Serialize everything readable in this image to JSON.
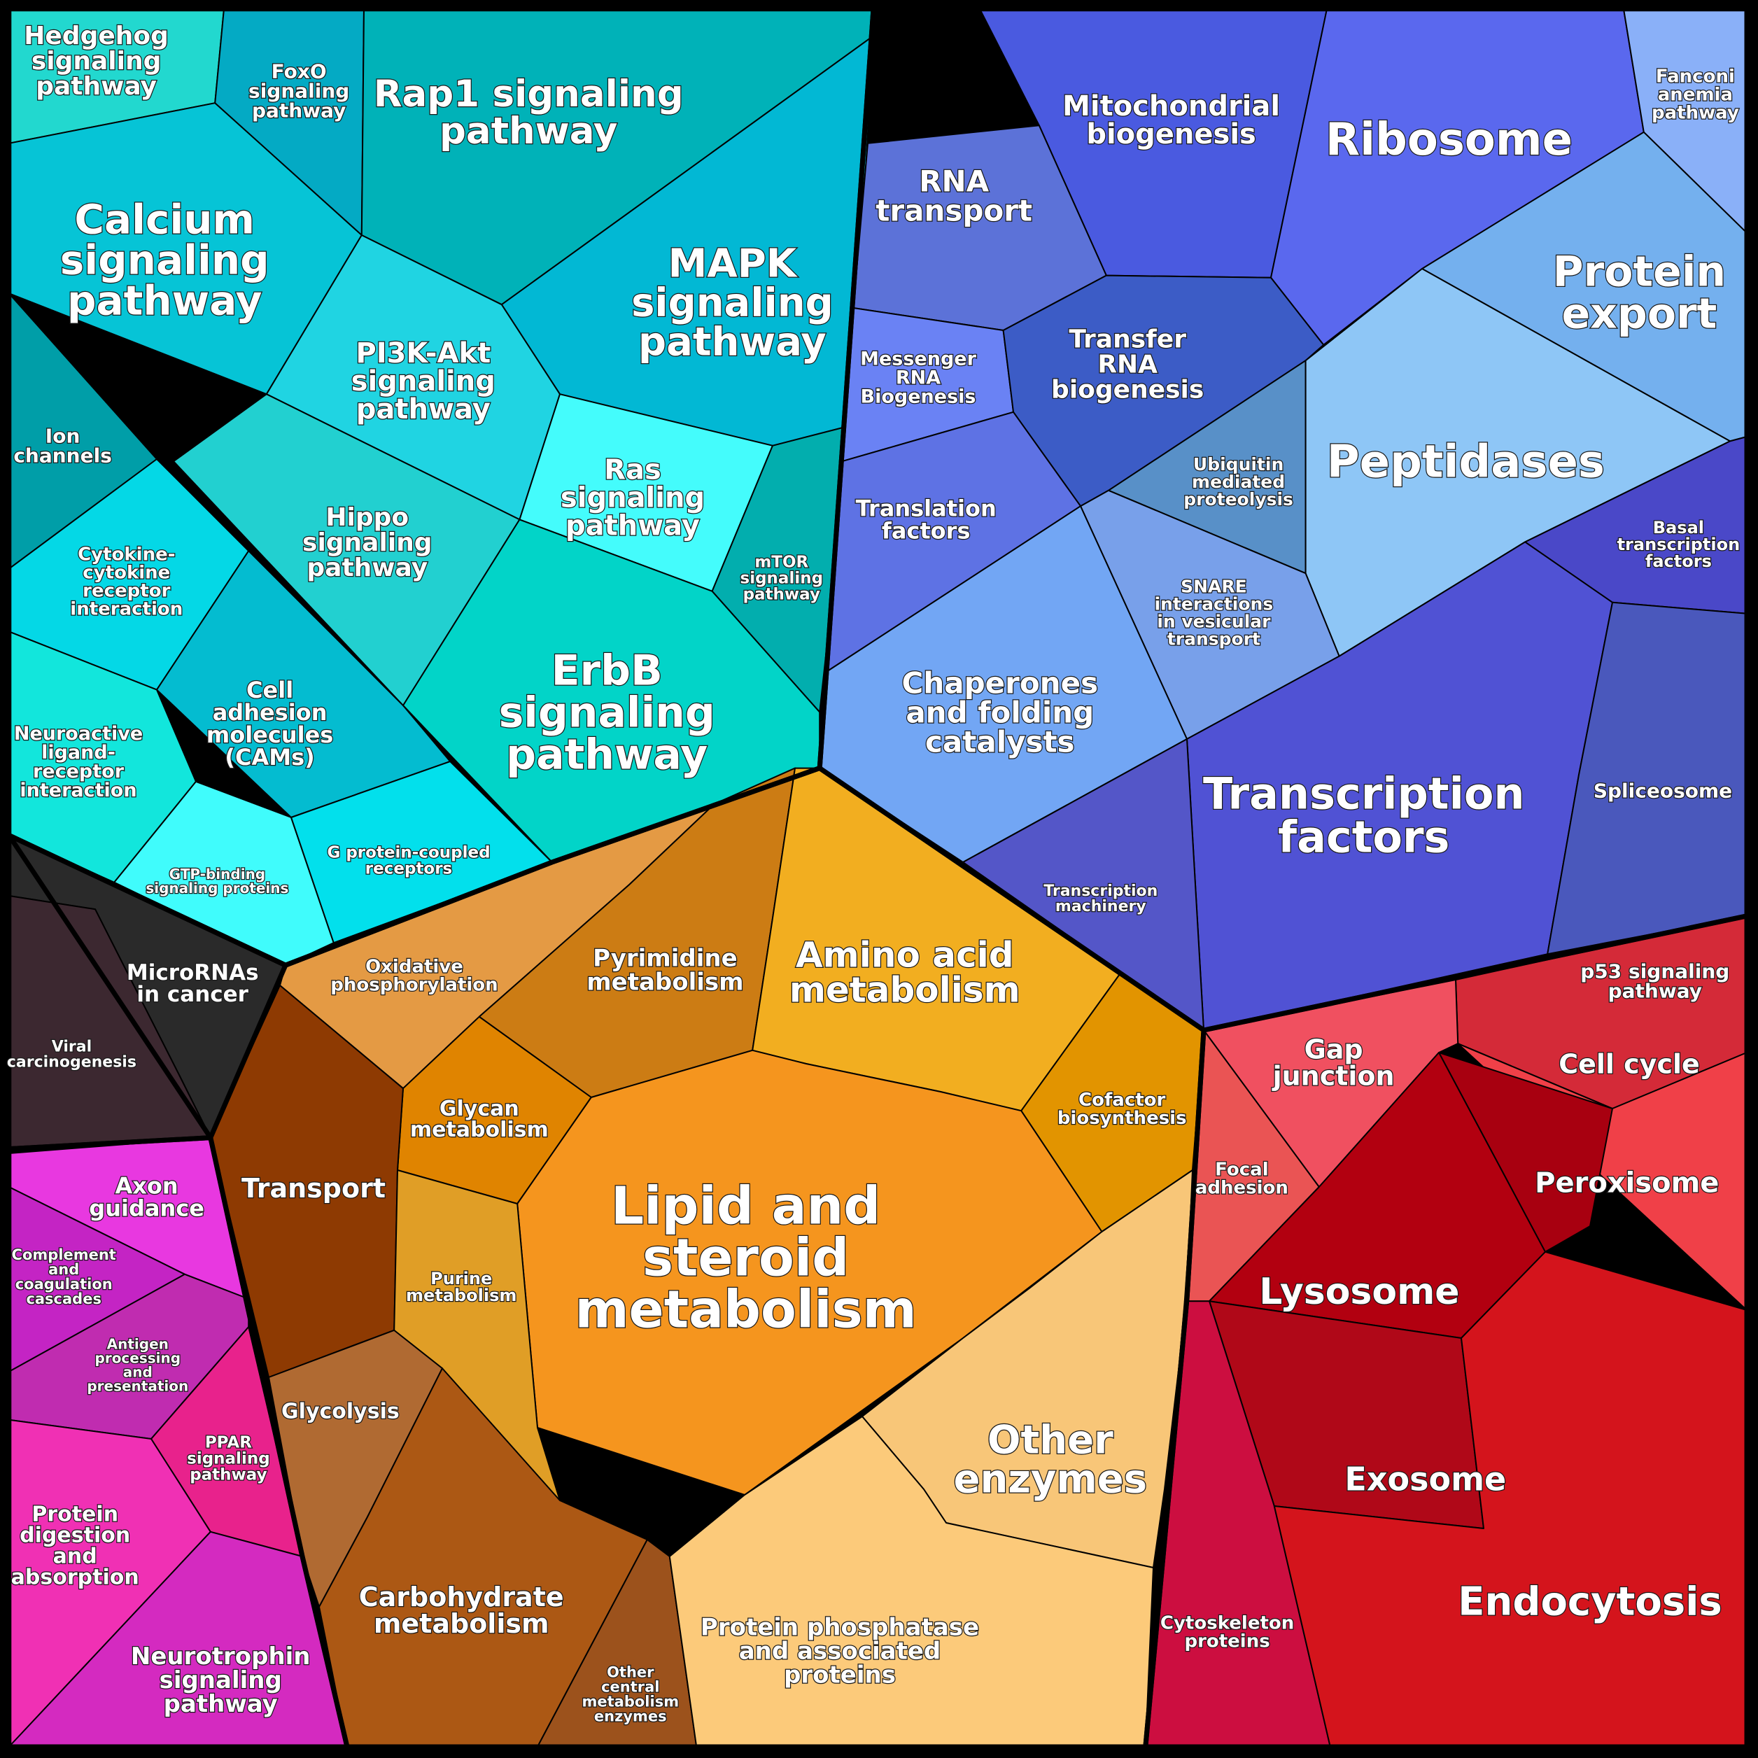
{
  "colors": {
    "signaling": "#10c6d0",
    "genetic": "#5a66e0",
    "metabolism": "#f0a030",
    "cellular": "#d01020",
    "disease": "#2a2a2a",
    "organismal": "#e030c0",
    "outline": "#000000"
  },
  "groups": [
    {
      "id": "signaling",
      "cells": [
        {
          "key": "hedgehog",
          "label": "Hedgehog\nsignaling\npathway",
          "color": "#22d8cf"
        },
        {
          "key": "foxo",
          "label": "FoxO\nsignaling\npathway",
          "color": "#04aac4"
        },
        {
          "key": "rap1",
          "label": "Rap1 signaling\npathway",
          "color": "#00b2b8"
        },
        {
          "key": "calcium",
          "label": "Calcium\nsignaling\npathway",
          "color": "#06c4d6"
        },
        {
          "key": "mapk",
          "label": "MAPK\nsignaling\npathway",
          "color": "#02b8d4"
        },
        {
          "key": "pi3k",
          "label": "PI3K-Akt\nsignaling\npathway",
          "color": "#20d4e2"
        },
        {
          "key": "ion",
          "label": "Ion\nchannels",
          "color": "#009ea8"
        },
        {
          "key": "ras",
          "label": "Ras\nsignaling\npathway",
          "color": "#44fcfc"
        },
        {
          "key": "hippo",
          "label": "Hippo\nsignaling\npathway",
          "color": "#22d0d0"
        },
        {
          "key": "mtor",
          "label": "mTOR\nsignaling\npathway",
          "color": "#02aeae"
        },
        {
          "key": "cytokine",
          "label": "Cytokine-\ncytokine\nreceptor\ninteraction",
          "color": "#04d8e6"
        },
        {
          "key": "cam",
          "label": "Cell\nadhesion\nmolecules\n(CAMs)",
          "color": "#04bcd0"
        },
        {
          "key": "erbb",
          "label": "ErbB\nsignaling\npathway",
          "color": "#02d4c8"
        },
        {
          "key": "neuroactive",
          "label": "Neuroactive\nligand-\nreceptor\ninteraction",
          "color": "#12e6dc"
        },
        {
          "key": "gtp",
          "label": "GTP-binding\nsignaling proteins",
          "color": "#40fcfc"
        },
        {
          "key": "gpcr",
          "label": "G protein-coupled\nreceptors",
          "color": "#02e0ec"
        }
      ]
    },
    {
      "id": "genetic",
      "cells": [
        {
          "key": "mito",
          "label": "Mitochondrial\nbiogenesis",
          "color": "#4a5ae0"
        },
        {
          "key": "ribosome",
          "label": "Ribosome",
          "color": "#5a68ee"
        },
        {
          "key": "fanconi",
          "label": "Fanconi\nanemia\npathway",
          "color": "#8ab0f8"
        },
        {
          "key": "rnatransport",
          "label": "RNA\ntransport",
          "color": "#5c72d8"
        },
        {
          "key": "proteinexport",
          "label": "Protein\nexport",
          "color": "#74b0ee"
        },
        {
          "key": "mrna",
          "label": "Messenger\nRNA\nBiogenesis",
          "color": "#6a82f4"
        },
        {
          "key": "trna",
          "label": "Transfer\nRNA\nbiogenesis",
          "color": "#3c5cc6"
        },
        {
          "key": "ubiquitin",
          "label": "Ubiquitin\nmediated\nproteolysis",
          "color": "#5890c8"
        },
        {
          "key": "peptidases",
          "label": "Peptidases",
          "color": "#8ec6f6"
        },
        {
          "key": "translation",
          "label": "Translation\nfactors",
          "color": "#5e72e4"
        },
        {
          "key": "snare",
          "label": "SNARE\ninteractions\nin vesicular\ntransport",
          "color": "#78a0ea"
        },
        {
          "key": "basal",
          "label": "Basal\ntranscription\nfactors",
          "color": "#4a48c8"
        },
        {
          "key": "chaperones",
          "label": "Chaperones\nand folding\ncatalysts",
          "color": "#72a6f4"
        },
        {
          "key": "tf",
          "label": "Transcription\nfactors",
          "color": "#5052d4"
        },
        {
          "key": "spliceosome",
          "label": "Spliceosome",
          "color": "#4a58bc"
        },
        {
          "key": "machinery",
          "label": "Transcription\nmachinery",
          "color": "#5456c8"
        }
      ]
    },
    {
      "id": "metabolism",
      "cells": [
        {
          "key": "oxphos",
          "label": "Oxidative\nphosphorylation",
          "color": "#e49a44"
        },
        {
          "key": "pyrimidine",
          "label": "Pyrimidine\nmetabolism",
          "color": "#cc7c14"
        },
        {
          "key": "aminoacid",
          "label": "Amino acid\nmetabolism",
          "color": "#f2ae20"
        },
        {
          "key": "cofactor",
          "label": "Cofactor\nbiosynthesis",
          "color": "#e29400"
        },
        {
          "key": "glycan",
          "label": "Glycan\nmetabolism",
          "color": "#e08400"
        },
        {
          "key": "transport",
          "label": "Transport",
          "color": "#8e3a02"
        },
        {
          "key": "lipid",
          "label": "Lipid and\nsteroid\nmetabolism",
          "color": "#f5951e"
        },
        {
          "key": "purine",
          "label": "Purine\nmetabolism",
          "color": "#e09e26"
        },
        {
          "key": "glycolysis",
          "label": "Glycolysis",
          "color": "#b06a32"
        },
        {
          "key": "otherenz",
          "label": "Other\nenzymes",
          "color": "#f8c678"
        },
        {
          "key": "carbohydrate",
          "label": "Carbohydrate\nmetabolism",
          "color": "#ac5814"
        },
        {
          "key": "othercentral",
          "label": "Other\ncentral\nmetabolism\nenzymes",
          "color": "#9c521c"
        },
        {
          "key": "phosphatase",
          "label": "Protein phosphatase\nand associated\nproteins",
          "color": "#fcca7a"
        }
      ]
    },
    {
      "id": "cellular",
      "cells": [
        {
          "key": "p53",
          "label": "p53 signaling\npathway",
          "color": "#d42a38"
        },
        {
          "key": "gap",
          "label": "Gap\njunction",
          "color": "#f05060"
        },
        {
          "key": "cellcycle",
          "label": "Cell cycle",
          "color": "#f04048"
        },
        {
          "key": "focal",
          "label": "Focal\nadhesion",
          "color": "#ea5454"
        },
        {
          "key": "peroxisome",
          "label": "Peroxisome",
          "color": "#a80010"
        },
        {
          "key": "lysosome",
          "label": "Lysosome",
          "color": "#b20010"
        },
        {
          "key": "exosome",
          "label": "Exosome",
          "color": "#b00818"
        },
        {
          "key": "cytoskeleton",
          "label": "Cytoskeleton\nproteins",
          "color": "#cc0e40"
        },
        {
          "key": "endocytosis",
          "label": "Endocytosis",
          "color": "#d4141c"
        }
      ]
    },
    {
      "id": "disease",
      "cells": [
        {
          "key": "micro",
          "label": "MicroRNAs\nin cancer",
          "color": "#2a2a2a"
        },
        {
          "key": "viral",
          "label": "Viral\ncarcinogenesis",
          "color": "#3c2830"
        }
      ]
    },
    {
      "id": "organismal",
      "cells": [
        {
          "key": "axon",
          "label": "Axon\nguidance",
          "color": "#e838e0"
        },
        {
          "key": "complement",
          "label": "Complement\nand\ncoagulation\ncascades",
          "color": "#c424c4"
        },
        {
          "key": "antigen",
          "label": "Antigen\nprocessing\nand\npresentation",
          "color": "#c02cb0"
        },
        {
          "key": "ppar",
          "label": "PPAR\nsignaling\npathway",
          "color": "#e8228c"
        },
        {
          "key": "digestion",
          "label": "Protein\ndigestion\nand\nabsorption",
          "color": "#f030b4"
        },
        {
          "key": "neurotrophin",
          "label": "Neurotrophin\nsignaling\npathway",
          "color": "#d42ac0"
        }
      ]
    }
  ]
}
